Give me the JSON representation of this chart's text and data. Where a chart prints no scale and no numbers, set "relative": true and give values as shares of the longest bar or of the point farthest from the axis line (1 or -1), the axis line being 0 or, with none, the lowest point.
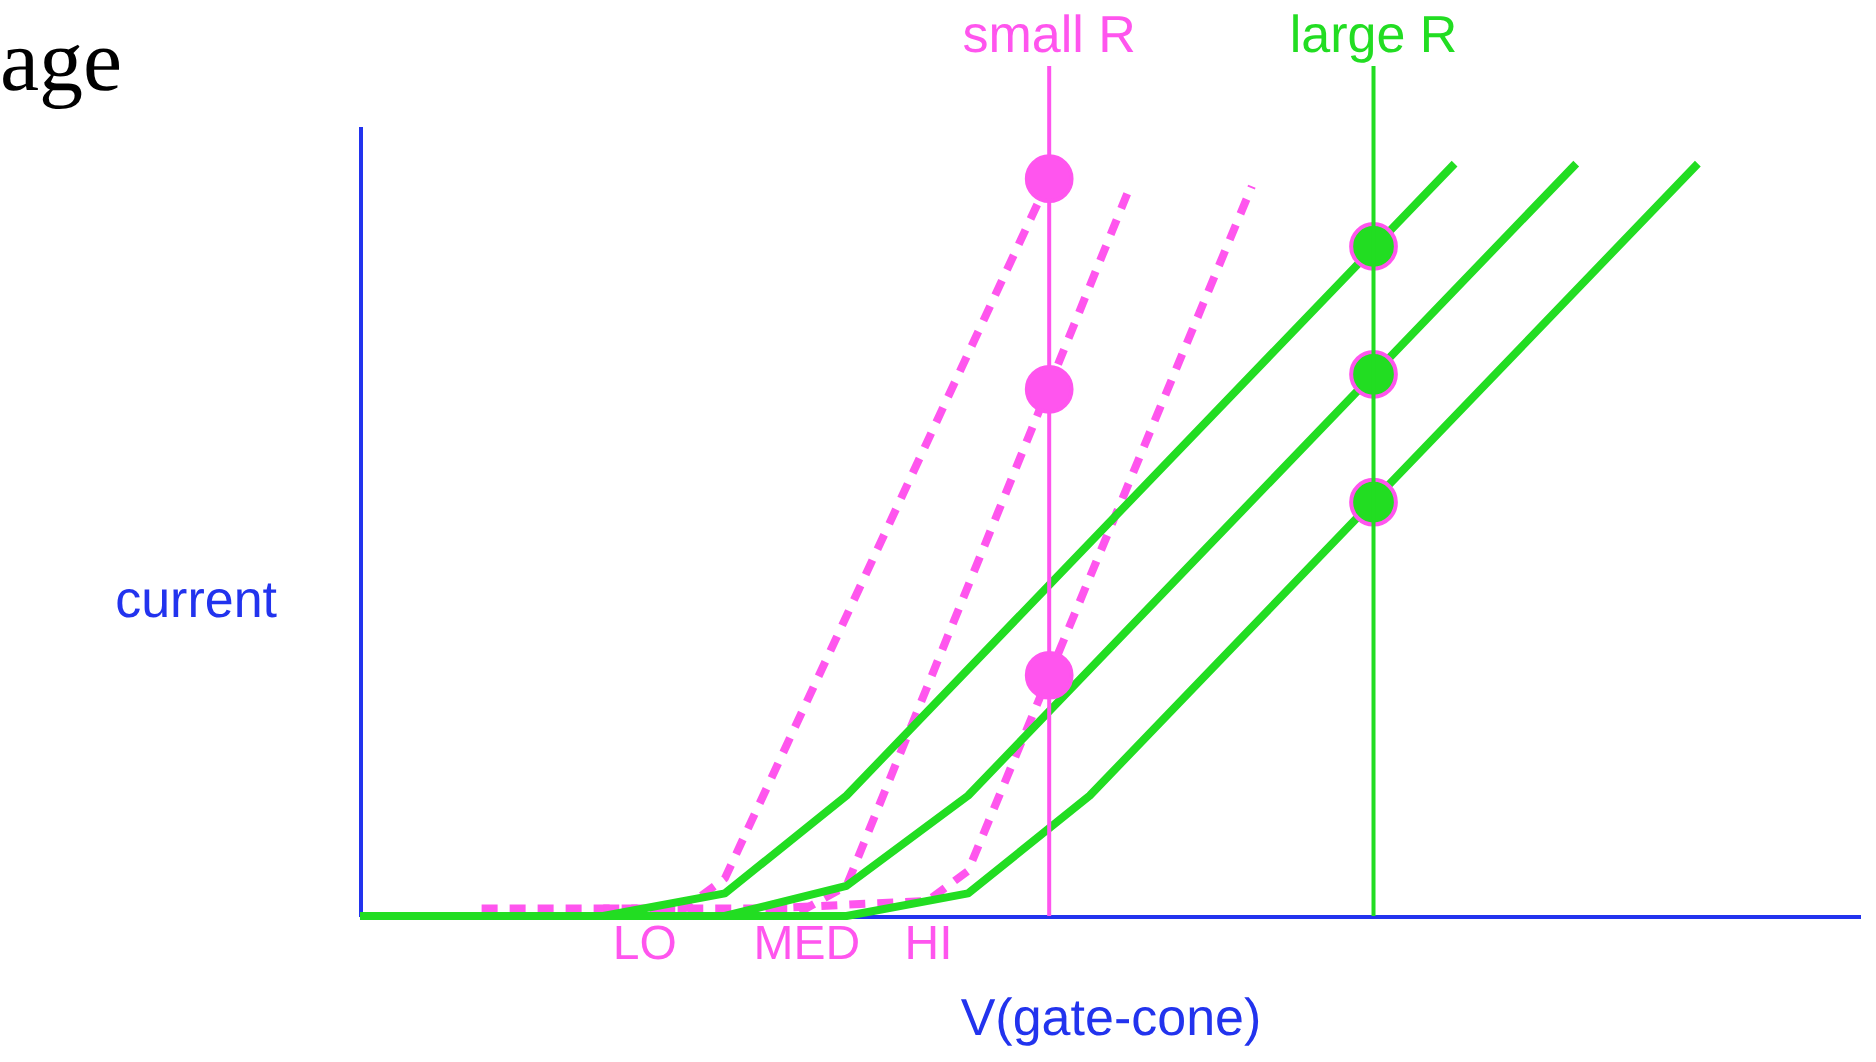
{
  "chart_data": {
    "type": "line",
    "relative": true,
    "title": "age",
    "xlabel": "V(gate-cone)",
    "ylabel": "current",
    "categories": [
      null,
      null,
      null,
      null,
      null,
      null,
      null,
      "LO",
      null,
      null,
      null,
      "MED",
      null,
      null,
      "HI",
      null,
      null,
      null,
      null,
      null,
      null,
      null,
      null,
      null,
      null,
      null,
      null,
      null,
      null,
      null,
      null,
      null,
      null,
      null,
      null,
      null,
      null,
      null
    ],
    "series": [
      {
        "color": "#ff55ee",
        "line_style": "dashed",
        "values": [
          null,
          null,
          null,
          0.01,
          null,
          null,
          null,
          null,
          0.01,
          0.05,
          null,
          null,
          null,
          null,
          null,
          null,
          null,
          0.98,
          null,
          null,
          null,
          null,
          null,
          null,
          null,
          null,
          null,
          null,
          null,
          null,
          null,
          null,
          null,
          null,
          null,
          null,
          null,
          null
        ]
      },
      {
        "color": "#ff55ee",
        "line_style": "dashed",
        "values": [
          null,
          null,
          null,
          null,
          null,
          null,
          0.01,
          null,
          null,
          null,
          null,
          0.01,
          0.04,
          null,
          null,
          null,
          null,
          null,
          null,
          0.97,
          null,
          null,
          null,
          null,
          null,
          null,
          null,
          null,
          null,
          null,
          null,
          null,
          null,
          null,
          null,
          null,
          null,
          null
        ]
      },
      {
        "color": "#ff55ee",
        "line_style": "dashed",
        "values": [
          null,
          null,
          null,
          null,
          null,
          null,
          null,
          null,
          null,
          null,
          0.01,
          null,
          null,
          null,
          0.02,
          0.06,
          null,
          null,
          null,
          null,
          null,
          null,
          0.97,
          null,
          null,
          null,
          null,
          null,
          null,
          null,
          null,
          null,
          null,
          null,
          null,
          null,
          null,
          null
        ]
      },
      {
        "color": "#22dd22",
        "line_style": "solid",
        "values": [
          0,
          null,
          null,
          null,
          null,
          null,
          0,
          null,
          null,
          0.03,
          null,
          null,
          0.16,
          null,
          null,
          null,
          null,
          null,
          null,
          null,
          null,
          null,
          null,
          null,
          null,
          null,
          null,
          1,
          null,
          null,
          null,
          null,
          null,
          null,
          null,
          null,
          null,
          null
        ]
      },
      {
        "color": "#22dd22",
        "line_style": "solid",
        "values": [
          0,
          null,
          null,
          null,
          null,
          null,
          null,
          null,
          null,
          0,
          null,
          null,
          0.04,
          null,
          null,
          0.16,
          null,
          null,
          null,
          null,
          null,
          null,
          null,
          null,
          null,
          null,
          null,
          null,
          null,
          null,
          1,
          null,
          null,
          null,
          null,
          null,
          null,
          null
        ]
      },
      {
        "color": "#22dd22",
        "line_style": "solid",
        "values": [
          0,
          null,
          null,
          null,
          null,
          null,
          null,
          null,
          null,
          null,
          null,
          null,
          0,
          null,
          null,
          0.03,
          null,
          null,
          0.16,
          null,
          null,
          null,
          null,
          null,
          null,
          null,
          null,
          null,
          null,
          null,
          null,
          null,
          null,
          1,
          null,
          null,
          null,
          null
        ]
      },
      {
        "type": "scatter",
        "color": "#ff55ee",
        "marker": "circle",
        "values": [
          null,
          null,
          null,
          null,
          null,
          null,
          null,
          null,
          null,
          null,
          null,
          null,
          null,
          null,
          null,
          null,
          null,
          0.98,
          null,
          null,
          null,
          null,
          null,
          null,
          null,
          null,
          null,
          null,
          null,
          null,
          null,
          null,
          null,
          null,
          null,
          null,
          null,
          null
        ]
      },
      {
        "type": "scatter",
        "color": "#ff55ee",
        "marker": "circle",
        "values": [
          null,
          null,
          null,
          null,
          null,
          null,
          null,
          null,
          null,
          null,
          null,
          null,
          null,
          null,
          null,
          null,
          null,
          0.7,
          null,
          null,
          null,
          null,
          null,
          null,
          null,
          null,
          null,
          null,
          null,
          null,
          null,
          null,
          null,
          null,
          null,
          null,
          null,
          null
        ]
      },
      {
        "type": "scatter",
        "color": "#ff55ee",
        "marker": "circle",
        "values": [
          null,
          null,
          null,
          null,
          null,
          null,
          null,
          null,
          null,
          null,
          null,
          null,
          null,
          null,
          null,
          null,
          null,
          0.32,
          null,
          null,
          null,
          null,
          null,
          null,
          null,
          null,
          null,
          null,
          null,
          null,
          null,
          null,
          null,
          null,
          null,
          null,
          null,
          null
        ]
      },
      {
        "type": "scatter",
        "color": "#22dd22",
        "marker": "circle",
        "values": [
          null,
          null,
          null,
          null,
          null,
          null,
          null,
          null,
          null,
          null,
          null,
          null,
          null,
          null,
          null,
          null,
          null,
          null,
          null,
          null,
          null,
          null,
          null,
          null,
          null,
          0.89,
          null,
          null,
          null,
          null,
          null,
          null,
          null,
          null,
          null,
          null,
          null,
          null
        ]
      },
      {
        "type": "scatter",
        "color": "#22dd22",
        "marker": "circle",
        "values": [
          null,
          null,
          null,
          null,
          null,
          null,
          null,
          null,
          null,
          null,
          null,
          null,
          null,
          null,
          null,
          null,
          null,
          null,
          null,
          null,
          null,
          null,
          null,
          null,
          null,
          0.72,
          null,
          null,
          null,
          null,
          null,
          null,
          null,
          null,
          null,
          null,
          null,
          null
        ]
      },
      {
        "type": "scatter",
        "color": "#22dd22",
        "marker": "circle",
        "values": [
          null,
          null,
          null,
          null,
          null,
          null,
          null,
          null,
          null,
          null,
          null,
          null,
          null,
          null,
          null,
          null,
          null,
          null,
          null,
          null,
          null,
          null,
          null,
          null,
          null,
          0.55,
          null,
          null,
          null,
          null,
          null,
          null,
          null,
          null,
          null,
          null,
          null,
          null
        ]
      }
    ],
    "annotations": [
      "small R",
      "large R"
    ],
    "tick_labels": "x"
  }
}
